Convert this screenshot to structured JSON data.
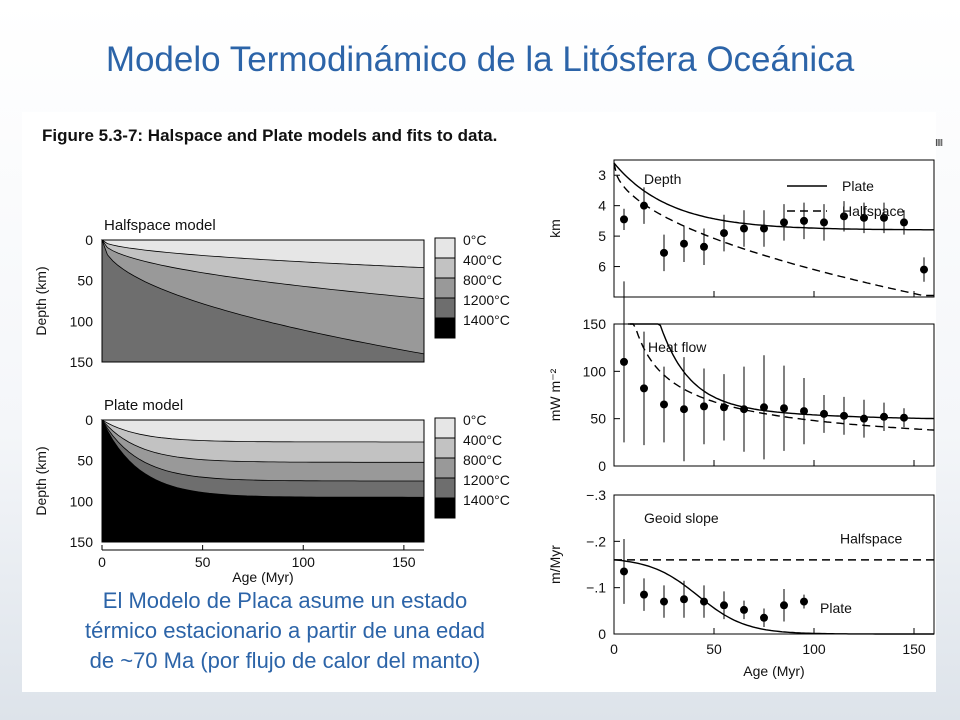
{
  "slide": {
    "title": "Modelo Termodinámico de la Litósfera Oceánica",
    "caption_lines": [
      "El Modelo de Placa asume un estado",
      "térmico estacionario a partir de una edad",
      "de ~70 Ma (por flujo de calor del manto)"
    ],
    "corner_marks": "IIII"
  },
  "figure": {
    "heading": "Figure 5.3-7: Halspace and Plate models and fits to data."
  },
  "chart_data": [
    {
      "type": "area",
      "title": "Halfspace model",
      "xlabel": "Age (Myr)",
      "ylabel": "Depth (km)",
      "xlim": [
        0,
        160
      ],
      "ylim": [
        0,
        150
      ],
      "yticks": [
        0,
        50,
        100,
        150
      ],
      "y_inverted": true,
      "isotherm_depths_at_160_myr": {
        "400": 34,
        "800": 72,
        "1200": 140
      },
      "legend": [
        {
          "label": "0°C",
          "color": "#e6e6e6"
        },
        {
          "label": "400°C",
          "color": "#c2c2c2"
        },
        {
          "label": "800°C",
          "color": "#999999"
        },
        {
          "label": "1200°C",
          "color": "#6e6e6e"
        },
        {
          "label": "1400°C",
          "color": "#000000"
        }
      ]
    },
    {
      "type": "area",
      "title": "Plate model",
      "xlabel": "Age (Myr)",
      "ylabel": "Depth (km)",
      "xlim": [
        0,
        160
      ],
      "xticks": [
        0,
        50,
        100,
        150
      ],
      "ylim": [
        0,
        150
      ],
      "yticks": [
        0,
        50,
        100,
        150
      ],
      "y_inverted": true,
      "plate_thickness_km": 95,
      "isotherm_depths_asymptotic": {
        "400": 27,
        "800": 52,
        "1200": 75
      },
      "legend": [
        {
          "label": "0°C",
          "color": "#e6e6e6"
        },
        {
          "label": "400°C",
          "color": "#c2c2c2"
        },
        {
          "label": "800°C",
          "color": "#999999"
        },
        {
          "label": "1200°C",
          "color": "#6e6e6e"
        },
        {
          "label": "1400°C",
          "color": "#000000"
        }
      ]
    },
    {
      "type": "line",
      "title": "Depth",
      "xlabel": "",
      "ylabel": "km",
      "xlim": [
        0,
        160
      ],
      "ylim": [
        2.5,
        7
      ],
      "yticks": [
        3,
        4,
        5,
        6
      ],
      "y_inverted": true,
      "series": [
        {
          "name": "Plate",
          "style": "solid"
        },
        {
          "name": "Halfspace",
          "style": "dashed"
        }
      ],
      "observations": {
        "x": [
          5,
          15,
          25,
          35,
          45,
          55,
          65,
          75,
          85,
          95,
          105,
          115,
          125,
          135,
          145,
          155
        ],
        "y": [
          4.45,
          4.0,
          5.55,
          5.25,
          5.35,
          4.9,
          4.75,
          4.75,
          4.55,
          4.5,
          4.55,
          4.35,
          4.4,
          4.4,
          4.55,
          6.1
        ],
        "err": [
          0.35,
          0.6,
          0.6,
          0.6,
          0.6,
          0.6,
          0.6,
          0.6,
          0.6,
          0.6,
          0.6,
          0.5,
          0.5,
          0.5,
          0.4,
          0.4
        ]
      }
    },
    {
      "type": "line",
      "title": "Heat flow",
      "xlabel": "",
      "ylabel": "mW m⁻²",
      "xlim": [
        0,
        160
      ],
      "ylim": [
        0,
        150
      ],
      "yticks": [
        0,
        50,
        100,
        150
      ],
      "series": [
        {
          "name": "Plate",
          "style": "solid"
        },
        {
          "name": "Halfspace",
          "style": "dashed"
        }
      ],
      "observations": {
        "x": [
          5,
          15,
          25,
          35,
          45,
          55,
          65,
          75,
          85,
          95,
          105,
          115,
          125,
          135,
          145
        ],
        "y": [
          110,
          82,
          65,
          60,
          63,
          62,
          60,
          62,
          61,
          58,
          55,
          53,
          50,
          52,
          51
        ],
        "err": [
          85,
          60,
          40,
          55,
          40,
          35,
          45,
          55,
          45,
          35,
          20,
          20,
          20,
          15,
          10
        ]
      }
    },
    {
      "type": "line",
      "title": "Geoid slope",
      "xlabel": "Age (Myr)",
      "ylabel": "m/Myr",
      "xlim": [
        0,
        160
      ],
      "xticks": [
        0,
        50,
        100,
        150
      ],
      "ylim": [
        0,
        -0.3
      ],
      "yticks": [
        "0",
        "−.1",
        "−.2",
        "−.3"
      ],
      "series": [
        {
          "name": "Halfspace",
          "style": "dashed",
          "value": -0.16
        },
        {
          "name": "Plate",
          "style": "solid"
        }
      ],
      "observations": {
        "x": [
          5,
          15,
          25,
          35,
          45,
          55,
          65,
          75,
          85,
          95
        ],
        "y": [
          -0.135,
          -0.085,
          -0.07,
          -0.075,
          -0.07,
          -0.062,
          -0.052,
          -0.035,
          -0.062,
          -0.07
        ],
        "err": [
          0.07,
          0.035,
          0.035,
          0.04,
          0.035,
          0.03,
          0.02,
          0.02,
          0.035,
          0.015
        ]
      }
    }
  ]
}
